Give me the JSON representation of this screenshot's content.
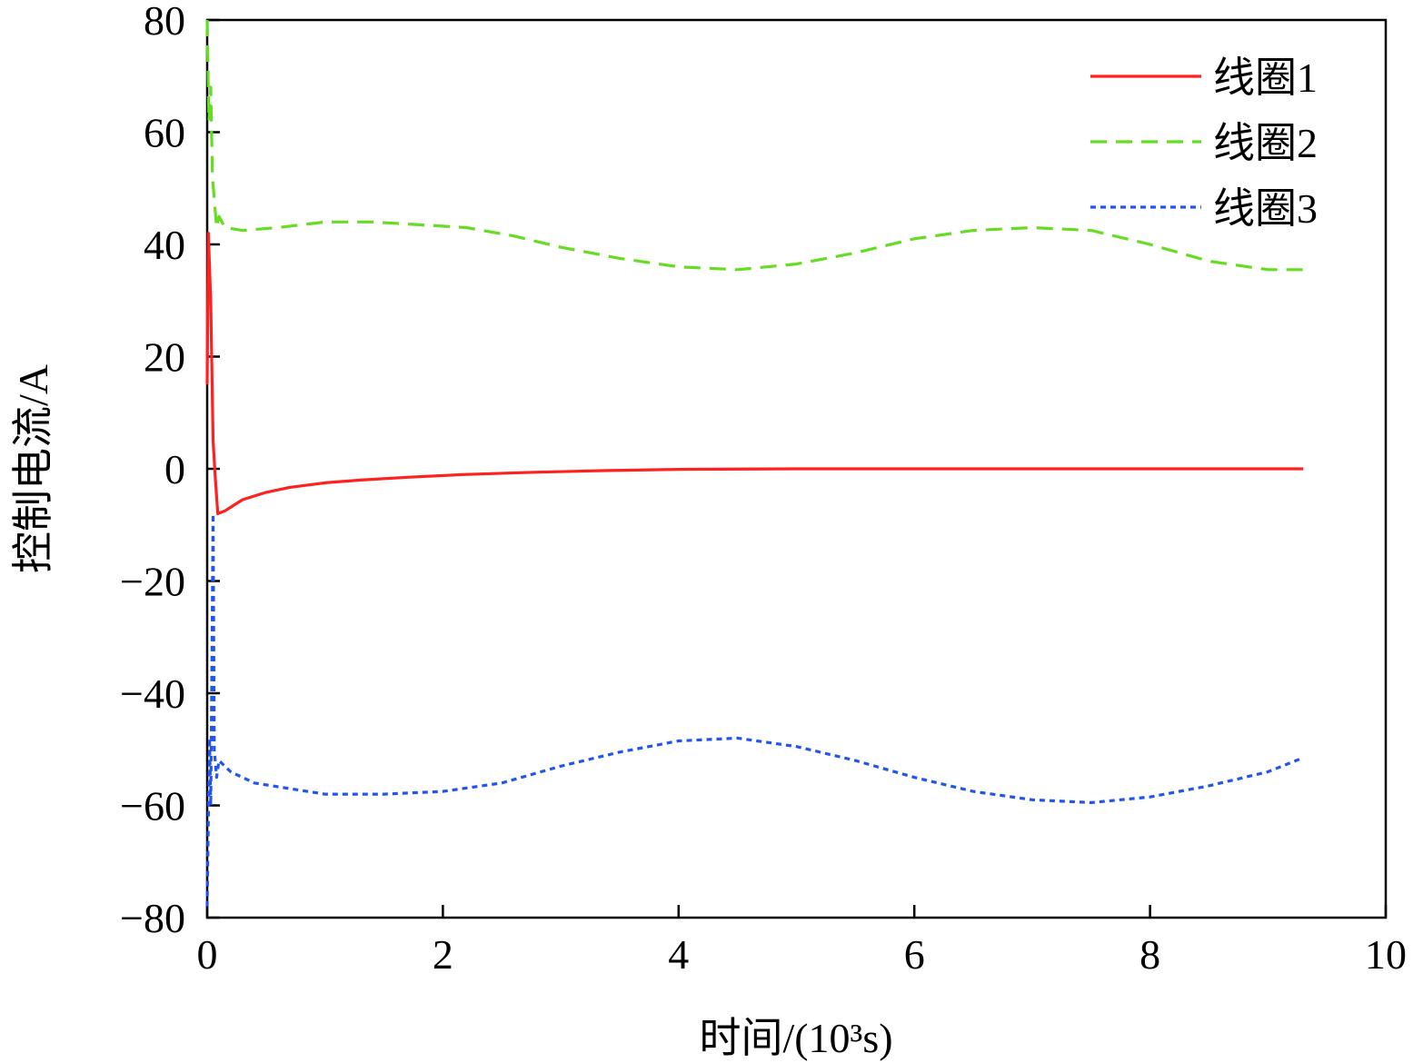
{
  "chart_data": {
    "type": "line",
    "xlabel": "时间/(10³s)",
    "ylabel": "控制电流/A",
    "xlim": [
      0,
      10
    ],
    "ylim": [
      -80,
      80
    ],
    "xticks": [
      "0",
      "2",
      "4",
      "6",
      "8",
      "10"
    ],
    "yticks": [
      "80",
      "60",
      "40",
      "20",
      "0",
      "−20",
      "−40",
      "−60",
      "−80"
    ],
    "grid": false,
    "legend_position": "top-right",
    "series": [
      {
        "name": "线圈1",
        "color": "#ff2020",
        "style": "solid",
        "points": [
          [
            0,
            15
          ],
          [
            0.01,
            42
          ],
          [
            0.03,
            30
          ],
          [
            0.05,
            5
          ],
          [
            0.07,
            -2
          ],
          [
            0.09,
            -8
          ],
          [
            0.15,
            -7.5
          ],
          [
            0.3,
            -5.5
          ],
          [
            0.5,
            -4.2
          ],
          [
            0.7,
            -3.3
          ],
          [
            1.0,
            -2.5
          ],
          [
            1.3,
            -2
          ],
          [
            1.7,
            -1.5
          ],
          [
            2.2,
            -1
          ],
          [
            2.8,
            -0.6
          ],
          [
            3.4,
            -0.3
          ],
          [
            4.0,
            -0.1
          ],
          [
            5,
            0
          ],
          [
            6,
            0
          ],
          [
            7,
            0
          ],
          [
            8,
            0
          ],
          [
            9.3,
            0
          ]
        ]
      },
      {
        "name": "线圈2",
        "color": "#66dd22",
        "style": "dashed",
        "points": [
          [
            0,
            80
          ],
          [
            0.015,
            62
          ],
          [
            0.03,
            68
          ],
          [
            0.045,
            52
          ],
          [
            0.06,
            48
          ],
          [
            0.08,
            43
          ],
          [
            0.1,
            45
          ],
          [
            0.15,
            43
          ],
          [
            0.3,
            42.5
          ],
          [
            0.6,
            43
          ],
          [
            1.0,
            44
          ],
          [
            1.4,
            44
          ],
          [
            1.8,
            43.5
          ],
          [
            2.2,
            43
          ],
          [
            2.6,
            41.5
          ],
          [
            3.0,
            39.5
          ],
          [
            3.5,
            37.5
          ],
          [
            4.0,
            36
          ],
          [
            4.5,
            35.5
          ],
          [
            5.0,
            36.5
          ],
          [
            5.5,
            38.5
          ],
          [
            6.0,
            41
          ],
          [
            6.5,
            42.5
          ],
          [
            7.0,
            43
          ],
          [
            7.5,
            42.5
          ],
          [
            8.0,
            40
          ],
          [
            8.5,
            37
          ],
          [
            9.0,
            35.5
          ],
          [
            9.3,
            35.5
          ]
        ]
      },
      {
        "name": "线圈3",
        "color": "#2255ee",
        "style": "dotted",
        "points": [
          [
            0,
            -78
          ],
          [
            0.01,
            -62
          ],
          [
            0.02,
            -48
          ],
          [
            0.03,
            -60
          ],
          [
            0.04,
            -35
          ],
          [
            0.05,
            -8
          ],
          [
            0.06,
            -50
          ],
          [
            0.08,
            -55
          ],
          [
            0.1,
            -52
          ],
          [
            0.2,
            -54
          ],
          [
            0.4,
            -56
          ],
          [
            0.7,
            -57
          ],
          [
            1.0,
            -58
          ],
          [
            1.5,
            -58
          ],
          [
            2.0,
            -57.5
          ],
          [
            2.5,
            -56
          ],
          [
            3.0,
            -53
          ],
          [
            3.5,
            -50.5
          ],
          [
            4.0,
            -48.5
          ],
          [
            4.5,
            -48
          ],
          [
            5.0,
            -49.5
          ],
          [
            5.5,
            -52
          ],
          [
            6.0,
            -55
          ],
          [
            6.5,
            -57.5
          ],
          [
            7.0,
            -59
          ],
          [
            7.5,
            -59.5
          ],
          [
            8.0,
            -58.5
          ],
          [
            8.5,
            -56.5
          ],
          [
            9.0,
            -54
          ],
          [
            9.3,
            -51.5
          ]
        ]
      }
    ]
  }
}
